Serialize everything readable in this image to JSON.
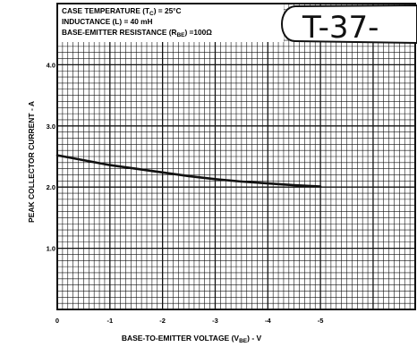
{
  "chart_data": {
    "type": "line",
    "conditions": [
      {
        "pre": "CASE TEMPERATURE (T",
        "sub": "C",
        "post": ") = 25°C"
      },
      {
        "pre": "INDUCTANCE (L) = 40 mH",
        "sub": "",
        "post": ""
      },
      {
        "pre": "BASE-EMITTER RESISTANCE (R",
        "sub": "BE",
        "post": ") =100Ω"
      }
    ],
    "annotation": "T-37-",
    "ylabel": "PEAK COLLECTOR CURRENT - A",
    "xlabel": {
      "pre": "BASE-TO-EMITTER VOLTAGE (V",
      "sub": "BE",
      "post": ") - V"
    },
    "xticks": [
      {
        "value": 0,
        "label": "0"
      },
      {
        "value": -1,
        "label": "-1"
      },
      {
        "value": -2,
        "label": "-2"
      },
      {
        "value": -3,
        "label": "-3"
      },
      {
        "value": -4,
        "label": "-4"
      },
      {
        "value": -5,
        "label": "-5"
      }
    ],
    "yticks": [
      {
        "value": 1,
        "label": "1.0"
      },
      {
        "value": 2,
        "label": "2.0"
      },
      {
        "value": 3,
        "label": "3.0"
      },
      {
        "value": 4,
        "label": "4.0"
      }
    ],
    "xlim": [
      0,
      -6.8
    ],
    "ylim": [
      0,
      5
    ],
    "grid": true,
    "series": [
      {
        "color": "#111111",
        "x": [
          0,
          -0.5,
          -1,
          -1.5,
          -2,
          -2.5,
          -3,
          -3.5,
          -4,
          -4.5,
          -5
        ],
        "y": [
          2.52,
          2.44,
          2.36,
          2.3,
          2.24,
          2.18,
          2.13,
          2.09,
          2.06,
          2.03,
          2.01
        ]
      }
    ]
  }
}
